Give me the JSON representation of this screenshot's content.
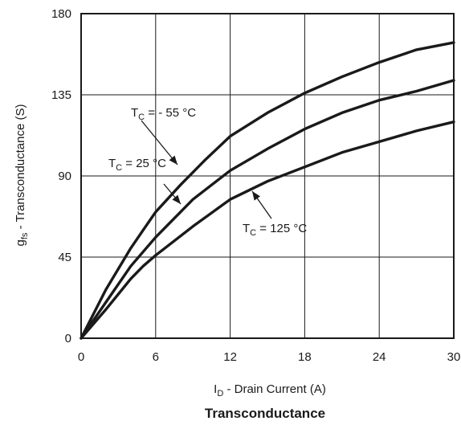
{
  "chart_data": {
    "type": "line",
    "title": "Transconductance",
    "xlabel": {
      "main": "I",
      "sub": "D",
      "rest": " - Drain Current (A)"
    },
    "ylabel": {
      "main": "g",
      "sub": "fs",
      "rest": " - Transconductance (S)"
    },
    "xlim": [
      0,
      30
    ],
    "ylim": [
      0,
      180
    ],
    "xticks": [
      0,
      6,
      12,
      18,
      24,
      30
    ],
    "yticks": [
      0,
      45,
      90,
      135,
      180
    ],
    "grid": true,
    "series": [
      {
        "name": "T_C = - 55 °C",
        "label": {
          "main": "T",
          "sub": "C",
          "rest": " = - 55 °C"
        },
        "x": [
          0,
          2,
          4,
          5,
          6,
          8,
          10,
          12,
          15,
          18,
          21,
          24,
          27,
          28.5,
          30
        ],
        "y": [
          0,
          27,
          50,
          60,
          70,
          85,
          99,
          112,
          125,
          136,
          145,
          153,
          160,
          162,
          164
        ]
      },
      {
        "name": "T_C = 25 °C",
        "label": {
          "main": "T",
          "sub": "C",
          "rest": " = 25 °C"
        },
        "x": [
          0,
          2,
          4,
          5,
          6,
          9,
          12,
          15,
          18,
          21,
          24,
          27,
          30
        ],
        "y": [
          0,
          20,
          40,
          48,
          56,
          77,
          93,
          105,
          116,
          125,
          132,
          137,
          143
        ]
      },
      {
        "name": "T_C = 125 °C",
        "label": {
          "main": "T",
          "sub": "C",
          "rest": " = 125 °C"
        },
        "x": [
          0,
          2,
          4,
          5,
          6,
          9,
          12,
          15,
          18,
          21,
          24,
          27,
          30
        ],
        "y": [
          0,
          16,
          33,
          40,
          46,
          62,
          77,
          87,
          95,
          103,
          109,
          115,
          120
        ]
      }
    ]
  }
}
